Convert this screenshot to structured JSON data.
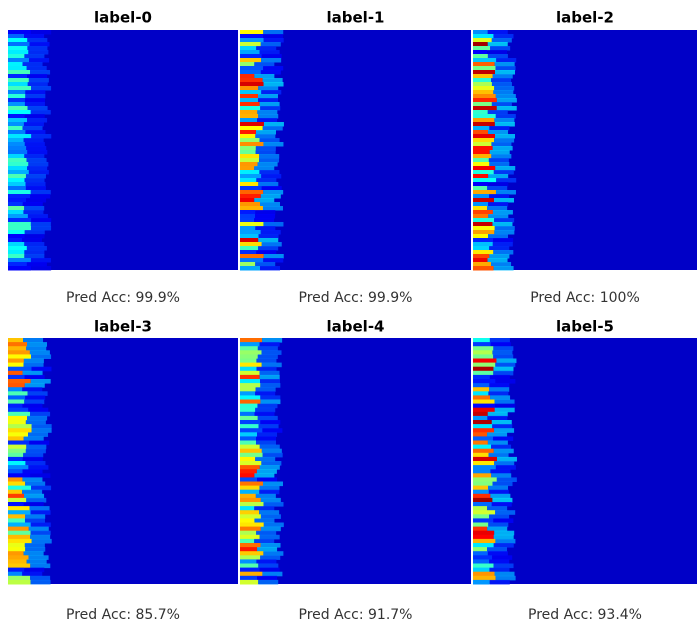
{
  "panels": [
    {
      "title": "label-0",
      "accuracy": "Pred Acc: 99.9%"
    },
    {
      "title": "label-1",
      "accuracy": "Pred Acc: 99.9%"
    },
    {
      "title": "label-2",
      "accuracy": "Pred Acc: 100%"
    },
    {
      "title": "label-3",
      "accuracy": "Pred Acc: 85.7%"
    },
    {
      "title": "label-4",
      "accuracy": "Pred Acc: 91.7%"
    },
    {
      "title": "label-5",
      "accuracy": "Pred Acc: 93.4%"
    }
  ]
}
